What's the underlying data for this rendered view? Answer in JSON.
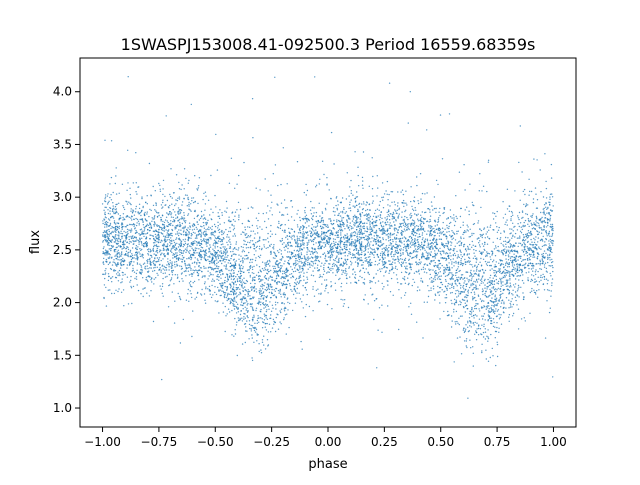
{
  "chart_data": {
    "type": "scatter",
    "title": "1SWASPJ153008.41-092500.3 Period 16559.68359s",
    "xlabel": "phase",
    "ylabel": "flux",
    "xlim": [
      -1.1,
      1.1
    ],
    "ylim": [
      0.82,
      4.32
    ],
    "x_ticks": [
      -1.0,
      -0.75,
      -0.5,
      -0.25,
      0.0,
      0.25,
      0.5,
      0.75,
      1.0
    ],
    "x_tick_labels": [
      "−1.00",
      "−0.75",
      "−0.50",
      "−0.25",
      "0.00",
      "0.25",
      "0.50",
      "0.75",
      "1.00"
    ],
    "y_ticks": [
      1.0,
      1.5,
      2.0,
      2.5,
      3.0,
      3.5,
      4.0
    ],
    "y_tick_labels": [
      "1.0",
      "1.5",
      "2.0",
      "2.5",
      "3.0",
      "3.5",
      "4.0"
    ],
    "grid": false,
    "legend": "none",
    "marker_color": "#1f77b4",
    "series": [
      {
        "x_range": [
          -1.0,
          1.0
        ],
        "baseline_flux": 2.6,
        "baseline_scatter": 0.22,
        "dips": [
          {
            "phase": -0.32,
            "min_flux": 1.95
          },
          {
            "phase": 0.68,
            "min_flux": 1.95
          }
        ],
        "flux_range": [
          0.95,
          4.15
        ]
      }
    ]
  }
}
